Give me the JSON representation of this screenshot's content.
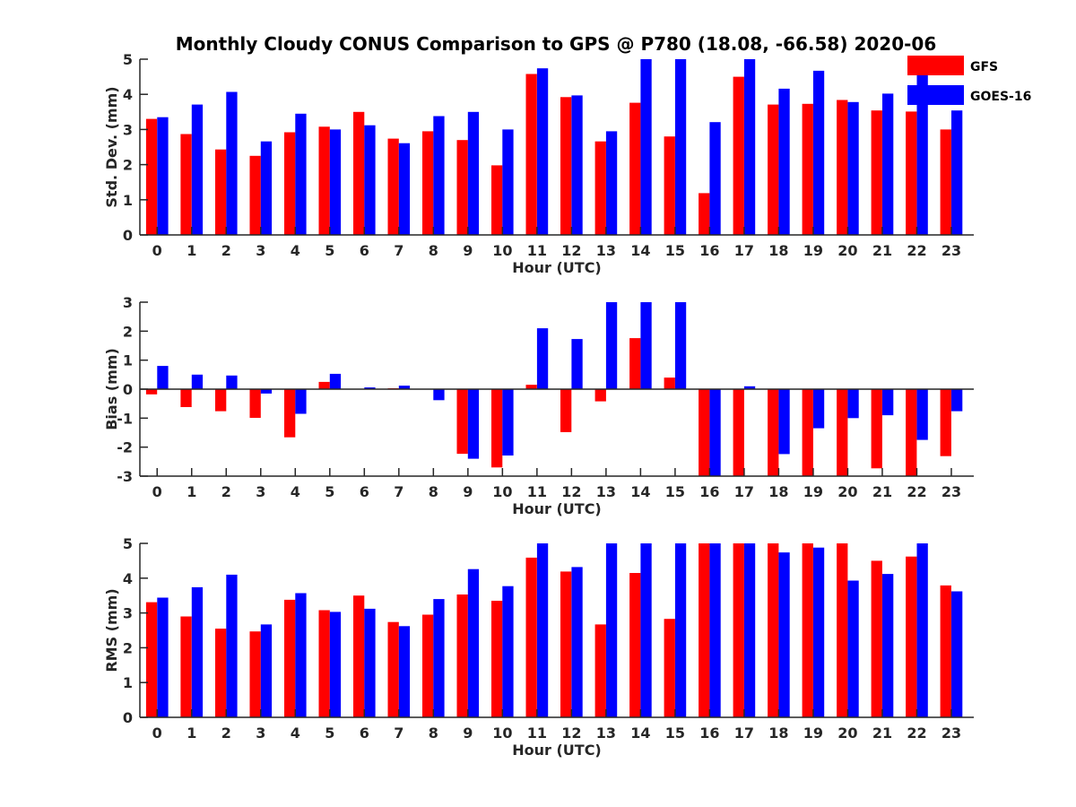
{
  "figure": {
    "title": "Monthly Cloudy CONUS Comparison to GPS @ P780 (18.08, -66.58) 2020-06"
  },
  "legend": {
    "placement": "top-right",
    "items": [
      {
        "label": "GFS",
        "color": "#ff0000"
      },
      {
        "label": "GOES-16",
        "color": "#0000ff"
      }
    ]
  },
  "chart_data": [
    {
      "type": "bar",
      "xlabel": "Hour (UTC)",
      "ylabel": "Std. Dev. (mm)",
      "ylim": [
        0,
        5
      ],
      "yticks": [
        0,
        1,
        2,
        3,
        4,
        5
      ],
      "categories": [
        "0",
        "1",
        "2",
        "3",
        "4",
        "5",
        "6",
        "7",
        "8",
        "9",
        "10",
        "11",
        "12",
        "13",
        "14",
        "15",
        "16",
        "17",
        "18",
        "19",
        "20",
        "21",
        "22",
        "23"
      ],
      "series": [
        {
          "name": "GFS",
          "color": "#ff0000",
          "values": [
            3.3,
            2.87,
            2.43,
            2.25,
            2.92,
            3.08,
            3.5,
            2.74,
            2.95,
            2.7,
            1.98,
            4.58,
            3.92,
            2.66,
            3.76,
            2.8,
            1.19,
            4.5,
            3.71,
            3.73,
            3.84,
            3.54,
            3.51,
            3.0
          ]
        },
        {
          "name": "GOES-16",
          "color": "#0000ff",
          "values": [
            3.35,
            3.71,
            4.07,
            2.66,
            3.45,
            3.0,
            3.12,
            2.61,
            3.38,
            3.5,
            3.0,
            4.74,
            3.97,
            2.95,
            5.0,
            5.0,
            3.21,
            5.0,
            4.16,
            4.67,
            3.78,
            4.02,
            4.7,
            3.54
          ]
        }
      ]
    },
    {
      "type": "bar",
      "xlabel": "Hour (UTC)",
      "ylabel": "Bias (mm)",
      "ylim": [
        -3,
        3
      ],
      "yticks": [
        -3,
        -2,
        -1,
        0,
        1,
        2,
        3
      ],
      "categories": [
        "0",
        "1",
        "2",
        "3",
        "4",
        "5",
        "6",
        "7",
        "8",
        "9",
        "10",
        "11",
        "12",
        "13",
        "14",
        "15",
        "16",
        "17",
        "18",
        "19",
        "20",
        "21",
        "22",
        "23"
      ],
      "series": [
        {
          "name": "GFS",
          "color": "#ff0000",
          "values": [
            -0.18,
            -0.62,
            -0.76,
            -0.99,
            -1.66,
            0.25,
            0.0,
            0.03,
            0.0,
            -2.23,
            -2.7,
            0.15,
            -1.48,
            -0.42,
            1.76,
            0.4,
            -3.0,
            -3.0,
            -3.0,
            -3.0,
            -3.0,
            -2.73,
            -3.0,
            -2.31
          ]
        },
        {
          "name": "GOES-16",
          "color": "#0000ff",
          "values": [
            0.8,
            0.5,
            0.47,
            -0.15,
            -0.85,
            0.53,
            0.06,
            0.12,
            -0.38,
            -2.4,
            -2.29,
            2.1,
            1.73,
            3.0,
            3.0,
            3.0,
            -3.0,
            0.1,
            -2.24,
            -1.35,
            -1.0,
            -0.9,
            -1.75,
            -0.76
          ]
        }
      ]
    },
    {
      "type": "bar",
      "xlabel": "Hour (UTC)",
      "ylabel": "RMS (mm)",
      "ylim": [
        0,
        5
      ],
      "yticks": [
        0,
        1,
        2,
        3,
        4,
        5
      ],
      "categories": [
        "0",
        "1",
        "2",
        "3",
        "4",
        "5",
        "6",
        "7",
        "8",
        "9",
        "10",
        "11",
        "12",
        "13",
        "14",
        "15",
        "16",
        "17",
        "18",
        "19",
        "20",
        "21",
        "22",
        "23"
      ],
      "series": [
        {
          "name": "GFS",
          "color": "#ff0000",
          "values": [
            3.31,
            2.9,
            2.55,
            2.47,
            3.38,
            3.08,
            3.5,
            2.74,
            2.95,
            3.53,
            3.35,
            4.59,
            4.19,
            2.67,
            4.15,
            2.83,
            5.0,
            5.0,
            5.0,
            5.0,
            5.0,
            4.5,
            4.62,
            3.79
          ]
        },
        {
          "name": "GOES-16",
          "color": "#0000ff",
          "values": [
            3.44,
            3.74,
            4.1,
            2.67,
            3.57,
            3.03,
            3.12,
            2.62,
            3.4,
            4.26,
            3.77,
            5.0,
            4.32,
            5.0,
            5.0,
            5.0,
            5.0,
            5.0,
            4.74,
            4.88,
            3.93,
            4.12,
            5.0,
            3.62
          ]
        }
      ]
    }
  ]
}
